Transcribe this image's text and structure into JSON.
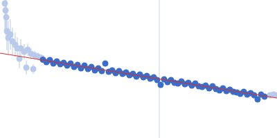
{
  "chart_data": {
    "type": "scatter",
    "xlim": [
      0,
      400
    ],
    "ylim": [
      0,
      200
    ],
    "tick_labels": false,
    "grid": false,
    "vline": 230,
    "vline_color": "#c8d4ec",
    "series": [
      {
        "type": "scatter",
        "marker": "circle",
        "color": "#b9c9e9",
        "x": [
          7,
          8,
          9,
          10,
          12,
          15,
          18,
          22,
          25,
          28,
          30,
          35,
          38,
          40,
          45,
          48,
          50,
          55,
          60,
          390,
          395,
          398
        ],
        "values": [
          195,
          185,
          175,
          155,
          145,
          150,
          140,
          135,
          130,
          115,
          130,
          125,
          102,
          128,
          122,
          100,
          120,
          118,
          116,
          62,
          63,
          62
        ],
        "errors": [
          40,
          35,
          30,
          28,
          25,
          22,
          20,
          18,
          16,
          14,
          13,
          11,
          10,
          9,
          8,
          7,
          7,
          6,
          5,
          3,
          3,
          3
        ]
      },
      {
        "type": "scatter",
        "marker": "circle",
        "color": "#3b6cc7",
        "x": [
          62,
          67,
          72,
          77,
          82,
          87,
          92,
          97,
          102,
          107,
          112,
          117,
          122,
          127,
          132,
          137,
          142,
          147,
          152,
          157,
          162,
          167,
          172,
          177,
          182,
          187,
          192,
          197,
          202,
          207,
          212,
          217,
          222,
          227,
          232,
          237,
          242,
          247,
          252,
          257,
          262,
          267,
          272,
          277,
          282,
          287,
          292,
          297,
          302,
          307,
          312,
          317,
          322,
          327,
          332,
          337,
          342,
          347,
          352,
          357,
          362,
          367,
          372,
          377,
          382
        ],
        "values": [
          113.5,
          110,
          113,
          108,
          111,
          107,
          109,
          105,
          108,
          103,
          106,
          101,
          105,
          100,
          103,
          98,
          101,
          97,
          108,
          96,
          98,
          94,
          97,
          93,
          95,
          91,
          93,
          89,
          92,
          88,
          90,
          86,
          88,
          84,
          77,
          85,
          81,
          84,
          80,
          79,
          82,
          78,
          80,
          76,
          79,
          75,
          74,
          76,
          72,
          75,
          71,
          69,
          72,
          68,
          70,
          67,
          66,
          64,
          67,
          63,
          65,
          62,
          56,
          63,
          60
        ]
      },
      {
        "type": "line",
        "line_style": "solid",
        "color": "#d9302c",
        "x": [
          0,
          400
        ],
        "values": [
          123,
          58
        ]
      }
    ]
  }
}
